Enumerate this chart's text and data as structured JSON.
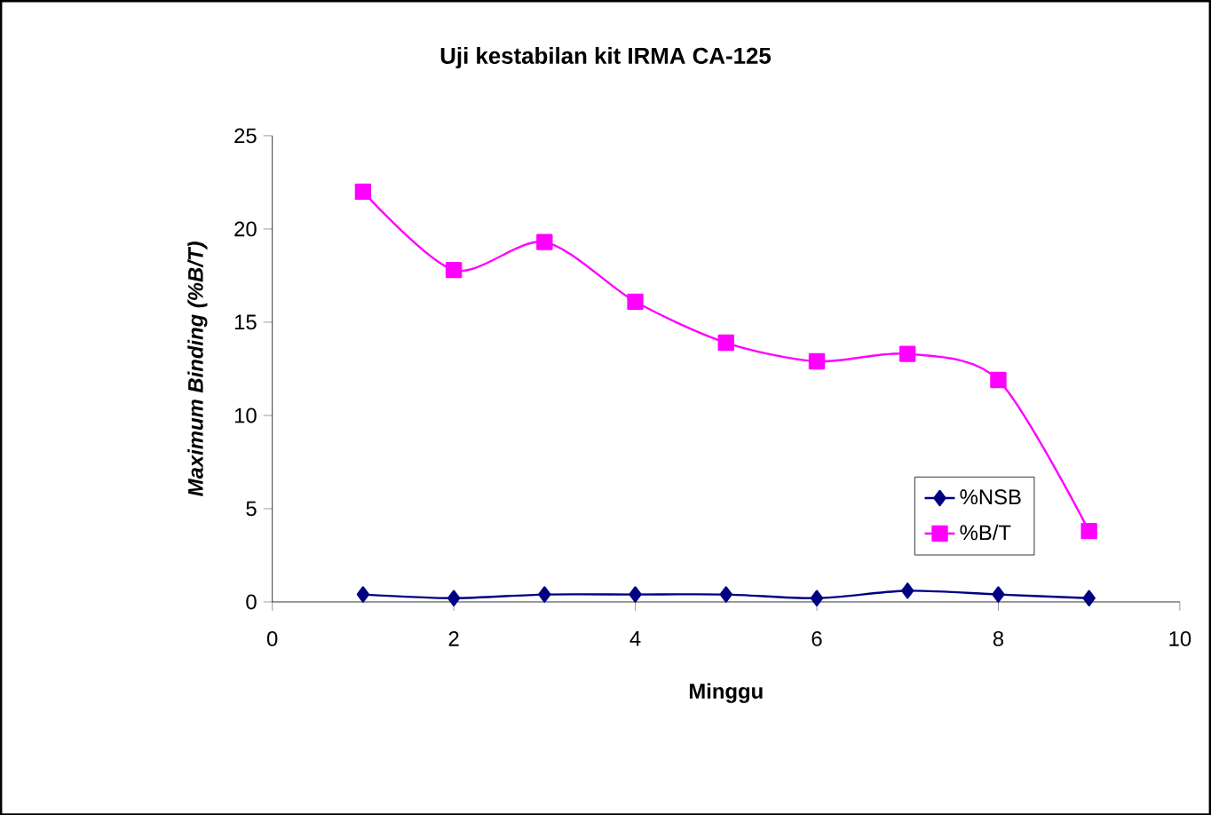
{
  "chart_data": {
    "type": "line",
    "title": "Uji kestabilan kit IRMA CA-125",
    "xlabel": "Minggu",
    "ylabel": "*Maximum Binding (%B/T)*",
    "x": [
      1,
      2,
      3,
      4,
      5,
      6,
      7,
      8,
      9
    ],
    "series": [
      {
        "name": "%NSB",
        "color": "#000080",
        "marker": "diamond",
        "values": [
          0.4,
          0.2,
          0.4,
          0.4,
          0.4,
          0.2,
          0.6,
          0.4,
          0.2
        ]
      },
      {
        "name": "%B/T",
        "color": "#ff00ff",
        "marker": "square",
        "values": [
          22,
          17.8,
          19.3,
          16.1,
          13.9,
          12.9,
          13.3,
          11.9,
          3.8
        ]
      }
    ],
    "xlim": [
      0,
      10
    ],
    "xticks": [
      0,
      2,
      4,
      6,
      8,
      10
    ],
    "ylim": [
      0,
      25
    ],
    "yticks": [
      0,
      5,
      10,
      15,
      20,
      25
    ],
    "grid": false,
    "legend": "right"
  }
}
